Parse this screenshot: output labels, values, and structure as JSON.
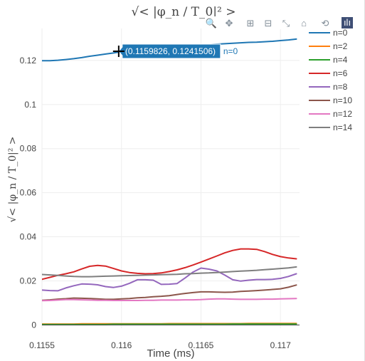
{
  "modebar": {
    "buttons": [
      {
        "name": "zoom-icon",
        "glyph": "🔍"
      },
      {
        "name": "pan-icon",
        "glyph": "✥"
      },
      {
        "name": "zoom-in-icon",
        "glyph": "⊞"
      },
      {
        "name": "zoom-out-icon",
        "glyph": "⊟"
      },
      {
        "name": "autoscale-icon",
        "glyph": "⤡"
      },
      {
        "name": "reset-axes-icon",
        "glyph": "⌂"
      },
      {
        "name": "toggle-spikes-icon",
        "glyph": "⟲"
      },
      {
        "name": "plotly-logo-icon",
        "glyph": "ılı"
      }
    ]
  },
  "chart_data": {
    "type": "line",
    "title": "√< |φ_n / T_0|² >",
    "xlabel": "Time (ms)",
    "ylabel": "√< |φ_n / T_0|² >",
    "xlim": [
      0.1155,
      0.11712
    ],
    "ylim": [
      -0.0015,
      0.1345
    ],
    "xticks": [
      0.1155,
      0.116,
      0.1165,
      0.117
    ],
    "xtick_labels": [
      "0.1155",
      "0.116",
      "0.1165",
      "0.117"
    ],
    "yticks": [
      0,
      0.02,
      0.04,
      0.06,
      0.08,
      0.1,
      0.12
    ],
    "ytick_labels": [
      "0",
      "0.02",
      "0.04",
      "0.06",
      "0.08",
      "0.1",
      "0.12"
    ],
    "grid": true,
    "legend_position": "top-right",
    "x": [
      0.1155,
      0.11555,
      0.1156,
      0.11565,
      0.1157,
      0.11575,
      0.1158,
      0.11585,
      0.1159,
      0.11595,
      0.116,
      0.11605,
      0.1161,
      0.11615,
      0.1162,
      0.11625,
      0.1163,
      0.11635,
      0.1164,
      0.11645,
      0.1165,
      0.11655,
      0.1166,
      0.11665,
      0.1167,
      0.11675,
      0.1168,
      0.11685,
      0.1169,
      0.11695,
      0.117,
      0.11705,
      0.1171
    ],
    "series": [
      {
        "name": "n=0",
        "color": "#1f77b4",
        "values": [
          0.1199,
          0.1199,
          0.1201,
          0.1204,
          0.1208,
          0.1213,
          0.1219,
          0.1224,
          0.1229,
          0.1234,
          0.124,
          0.1244,
          0.1247,
          0.125,
          0.1253,
          0.1256,
          0.1259,
          0.1262,
          0.1265,
          0.1268,
          0.127,
          0.1272,
          0.1274,
          0.1276,
          0.1278,
          0.128,
          0.1282,
          0.1283,
          0.1285,
          0.1287,
          0.129,
          0.1293,
          0.1297
        ]
      },
      {
        "name": "n=2",
        "color": "#ff7f0e",
        "values": [
          0.0004,
          0.0004,
          0.0004,
          0.0004,
          0.0004,
          0.0005,
          0.0005,
          0.0005,
          0.0005,
          0.0005,
          0.0005,
          0.0005,
          0.0005,
          0.0005,
          0.0005,
          0.0005,
          0.0006,
          0.0006,
          0.0006,
          0.0006,
          0.0006,
          0.0006,
          0.0006,
          0.0006,
          0.0006,
          0.0006,
          0.0007,
          0.0007,
          0.0007,
          0.0007,
          0.0007,
          0.0007,
          0.0007
        ]
      },
      {
        "name": "n=4",
        "color": "#2ca02c",
        "values": [
          0.0002,
          0.0002,
          0.0002,
          0.0002,
          0.0002,
          0.0002,
          0.0002,
          0.0002,
          0.0002,
          0.0003,
          0.0003,
          0.0003,
          0.0003,
          0.0003,
          0.0003,
          0.0003,
          0.0003,
          0.0003,
          0.0003,
          0.0003,
          0.0003,
          0.0003,
          0.0003,
          0.0003,
          0.0004,
          0.0004,
          0.0004,
          0.0004,
          0.0004,
          0.0004,
          0.0004,
          0.0004,
          0.0004
        ]
      },
      {
        "name": "n=6",
        "color": "#d62728",
        "values": [
          0.0207,
          0.0216,
          0.0225,
          0.0232,
          0.0241,
          0.0254,
          0.0266,
          0.027,
          0.0267,
          0.0256,
          0.0245,
          0.0238,
          0.0234,
          0.0232,
          0.0233,
          0.0236,
          0.0242,
          0.025,
          0.026,
          0.0272,
          0.0285,
          0.0299,
          0.0313,
          0.0327,
          0.0338,
          0.0345,
          0.0345,
          0.0343,
          0.0333,
          0.032,
          0.031,
          0.0304,
          0.03
        ]
      },
      {
        "name": "n=8",
        "color": "#9467bd",
        "values": [
          0.0158,
          0.0156,
          0.0155,
          0.0168,
          0.0178,
          0.0186,
          0.0185,
          0.0182,
          0.0174,
          0.017,
          0.0176,
          0.0189,
          0.0205,
          0.0205,
          0.0203,
          0.0184,
          0.0185,
          0.0188,
          0.0213,
          0.024,
          0.0258,
          0.0253,
          0.0245,
          0.0226,
          0.0205,
          0.0199,
          0.0203,
          0.0206,
          0.0206,
          0.0207,
          0.0211,
          0.022,
          0.0232
        ]
      },
      {
        "name": "n=10",
        "color": "#8c564b",
        "values": [
          0.0112,
          0.0114,
          0.0117,
          0.0119,
          0.0122,
          0.0121,
          0.012,
          0.0118,
          0.0116,
          0.0116,
          0.0118,
          0.012,
          0.0123,
          0.0125,
          0.0128,
          0.013,
          0.0133,
          0.0138,
          0.0143,
          0.0147,
          0.015,
          0.015,
          0.0149,
          0.0148,
          0.0149,
          0.0152,
          0.0154,
          0.0156,
          0.0158,
          0.0161,
          0.0164,
          0.0171,
          0.0181
        ]
      },
      {
        "name": "n=12",
        "color": "#e377c2",
        "values": [
          0.011,
          0.0111,
          0.0113,
          0.0115,
          0.0115,
          0.0114,
          0.0113,
          0.0112,
          0.0112,
          0.0111,
          0.0111,
          0.0111,
          0.0111,
          0.0112,
          0.0112,
          0.0113,
          0.0113,
          0.0113,
          0.0114,
          0.0114,
          0.0115,
          0.0117,
          0.0118,
          0.0118,
          0.0117,
          0.0116,
          0.0116,
          0.0116,
          0.0117,
          0.0117,
          0.0118,
          0.0119,
          0.012
        ]
      },
      {
        "name": "n=14",
        "color": "#7f7f7f",
        "values": [
          0.0229,
          0.0227,
          0.0225,
          0.0222,
          0.022,
          0.0219,
          0.0219,
          0.022,
          0.0221,
          0.0222,
          0.0223,
          0.0224,
          0.0225,
          0.0226,
          0.0227,
          0.0228,
          0.0229,
          0.023,
          0.0232,
          0.0233,
          0.0235,
          0.0236,
          0.0238,
          0.024,
          0.0242,
          0.0244,
          0.0246,
          0.0248,
          0.0251,
          0.0253,
          0.0256,
          0.0259,
          0.0263
        ]
      }
    ],
    "hover": {
      "label": "(0.1159826, 0.1241506)",
      "series_name": "n=0",
      "x": 0.1159826,
      "y": 0.1241506
    }
  }
}
